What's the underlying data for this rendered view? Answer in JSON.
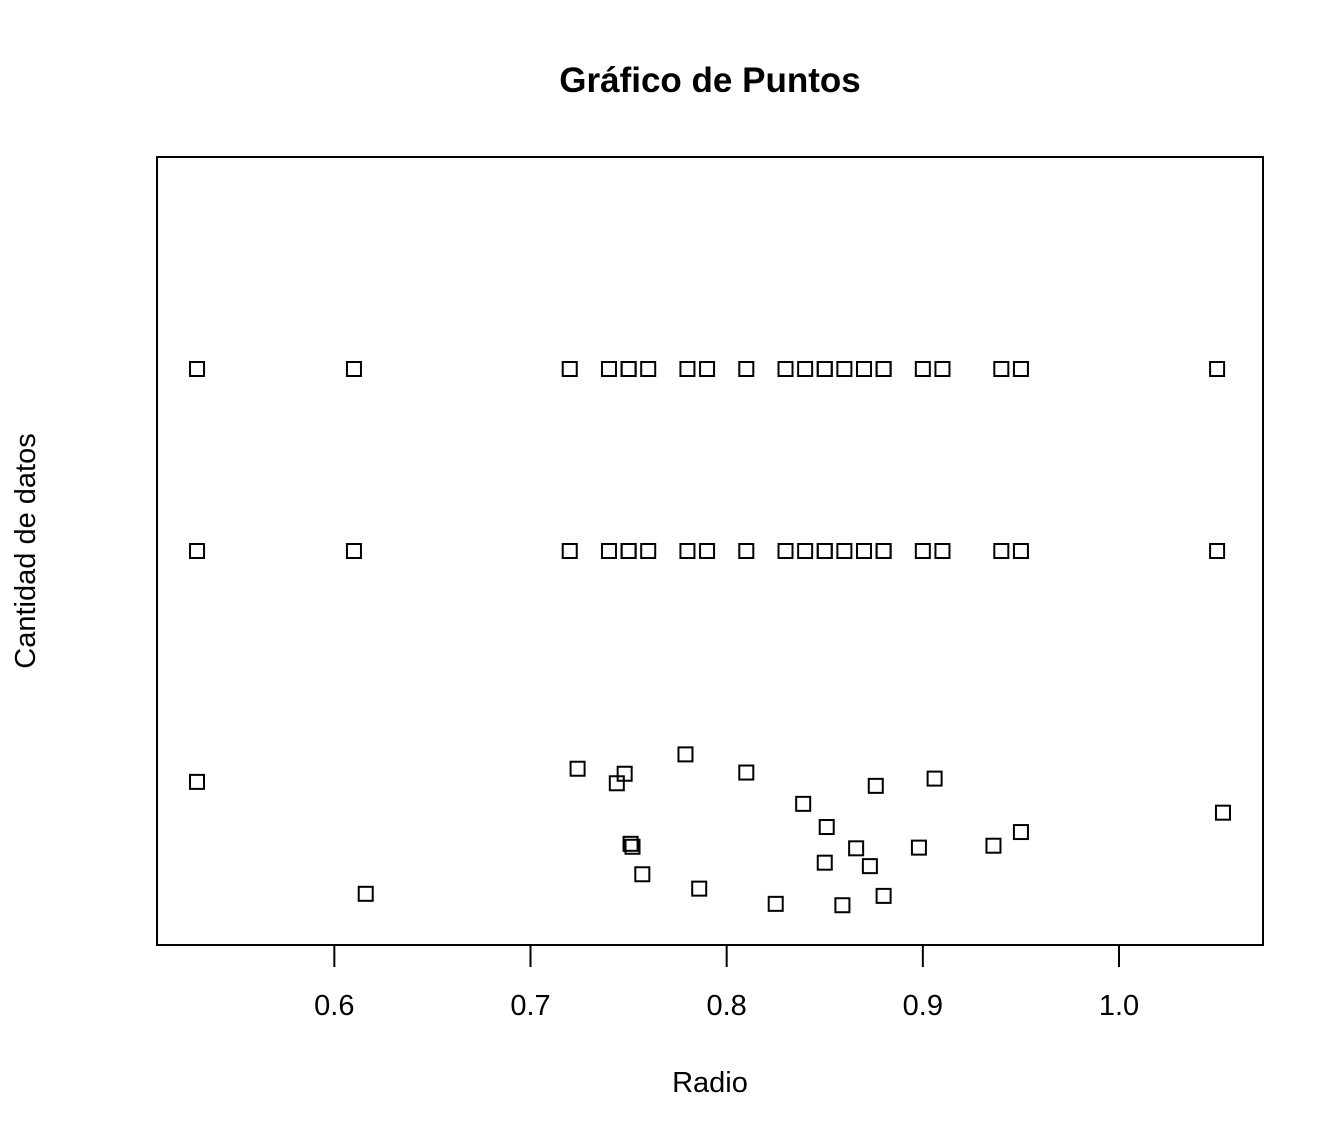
{
  "chart_data": {
    "type": "scatter",
    "title": "Gráfico de Puntos",
    "xlabel": "Radio",
    "ylabel": "Cantidad de datos",
    "xlim": [
      0.5096,
      1.0734
    ],
    "x_ticks": [
      0.6,
      0.7,
      0.8,
      0.9,
      1.0
    ],
    "x_tick_labels": [
      "0.6",
      "0.7",
      "0.8",
      "0.9",
      "1.0"
    ],
    "grid": false,
    "marker": "open-square",
    "point_color": "#000000",
    "strips": {
      "overplot": [
        0.53,
        0.61,
        0.72,
        0.74,
        0.75,
        0.75,
        0.75,
        0.76,
        0.78,
        0.79,
        0.81,
        0.83,
        0.84,
        0.85,
        0.85,
        0.86,
        0.87,
        0.87,
        0.88,
        0.88,
        0.9,
        0.91,
        0.94,
        0.95,
        1.05
      ],
      "stack": [
        0.53,
        0.61,
        0.72,
        0.74,
        0.75,
        0.75,
        0.75,
        0.76,
        0.78,
        0.79,
        0.81,
        0.83,
        0.84,
        0.85,
        0.85,
        0.86,
        0.87,
        0.87,
        0.88,
        0.88,
        0.9,
        0.91,
        0.94,
        0.95,
        1.05
      ],
      "jitter": [
        {
          "x": 0.53,
          "y": 0.729
        },
        {
          "x": 0.616,
          "y": 0.082
        },
        {
          "x": 0.724,
          "y": 0.805
        },
        {
          "x": 0.744,
          "y": 0.721
        },
        {
          "x": 0.748,
          "y": 0.776
        },
        {
          "x": 0.751,
          "y": 0.371
        },
        {
          "x": 0.752,
          "y": 0.354
        },
        {
          "x": 0.757,
          "y": 0.195
        },
        {
          "x": 0.779,
          "y": 0.888
        },
        {
          "x": 0.786,
          "y": 0.112
        },
        {
          "x": 0.81,
          "y": 0.783
        },
        {
          "x": 0.825,
          "y": 0.024
        },
        {
          "x": 0.839,
          "y": 0.602
        },
        {
          "x": 0.85,
          "y": 0.262
        },
        {
          "x": 0.851,
          "y": 0.468
        },
        {
          "x": 0.859,
          "y": 0.016
        },
        {
          "x": 0.866,
          "y": 0.345
        },
        {
          "x": 0.873,
          "y": 0.242
        },
        {
          "x": 0.876,
          "y": 0.706
        },
        {
          "x": 0.88,
          "y": 0.07
        },
        {
          "x": 0.898,
          "y": 0.349
        },
        {
          "x": 0.906,
          "y": 0.748
        },
        {
          "x": 0.936,
          "y": 0.36
        },
        {
          "x": 0.95,
          "y": 0.439
        },
        {
          "x": 1.053,
          "y": 0.551
        }
      ]
    }
  }
}
